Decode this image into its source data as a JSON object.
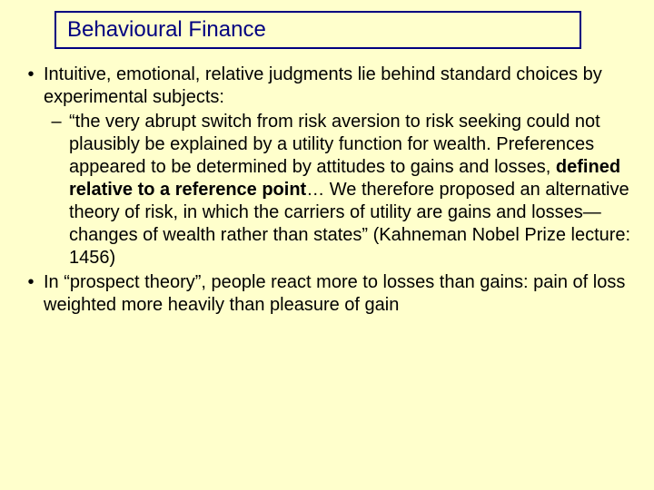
{
  "slide": {
    "background_color": "#ffffcc",
    "text_color": "#000000",
    "title_border_color": "#000080",
    "title_text_color": "#000080",
    "font_family": "Comic Sans MS",
    "title_fontsize": 24,
    "body_fontsize": 20
  },
  "title": "Behavioural Finance",
  "bullets": {
    "b1_lead": "Intuitive, emotional, relative judgments lie behind standard choices by experimental subjects:",
    "b1_sub_pre": "“the very abrupt switch from risk aversion to risk seeking could not plausibly be explained by a utility function for wealth. Preferences appeared to be determined by attitudes to gains and losses, ",
    "b1_sub_bold": "defined relative to a reference point",
    "b1_sub_post": "… We therefore proposed an alternative theory of risk, in which the carriers of utility are gains and losses—changes of wealth rather than states” (Kahneman Nobel Prize lecture: 1456)",
    "b2": "In “prospect theory”, people react more to losses than gains: pain of loss weighted more heavily than pleasure of gain"
  },
  "markers": {
    "l1": "•",
    "l2": "–"
  }
}
